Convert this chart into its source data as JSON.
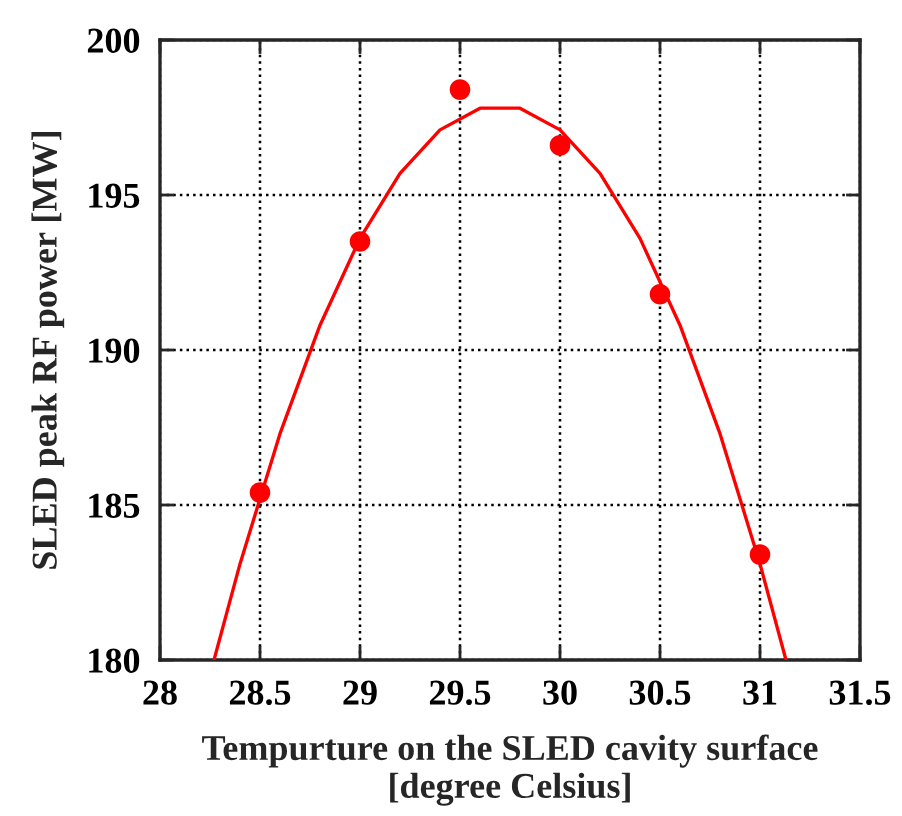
{
  "chart_data": {
    "type": "scatter",
    "xlabel": "Tempurture on the SLED cavity surface\n[degree Celsius]",
    "ylabel": "SLED peak RF power [MW]",
    "series": [
      {
        "color": "#ff0000",
        "marker": "circle",
        "x": [
          28.5,
          29,
          29.5,
          30,
          30.5,
          31
        ],
        "values": [
          185.4,
          193.5,
          198.4,
          196.6,
          191.8,
          183.4
        ]
      },
      {
        "type": "line",
        "color": "#ff0000",
        "marker": "none",
        "line_style": "solid",
        "x": [
          28.27,
          28.4,
          28.6,
          28.8,
          29.0,
          29.2,
          29.4,
          29.6,
          29.7,
          29.8,
          30.0,
          30.2,
          30.4,
          30.6,
          30.8,
          31.0,
          31.13
        ],
        "values": [
          180.0,
          183.1,
          187.3,
          190.8,
          193.6,
          195.7,
          197.1,
          197.8,
          197.8,
          197.8,
          197.1,
          195.7,
          193.6,
          190.8,
          187.3,
          183.1,
          180.0
        ]
      }
    ],
    "xlim": [
      28,
      31.5
    ],
    "xticks": [
      28,
      28.5,
      29,
      29.5,
      30,
      30.5,
      31,
      31.5
    ],
    "ylim": [
      180,
      200
    ],
    "yticks": [
      180,
      185,
      190,
      195,
      200
    ],
    "grid": true,
    "legend": false
  }
}
